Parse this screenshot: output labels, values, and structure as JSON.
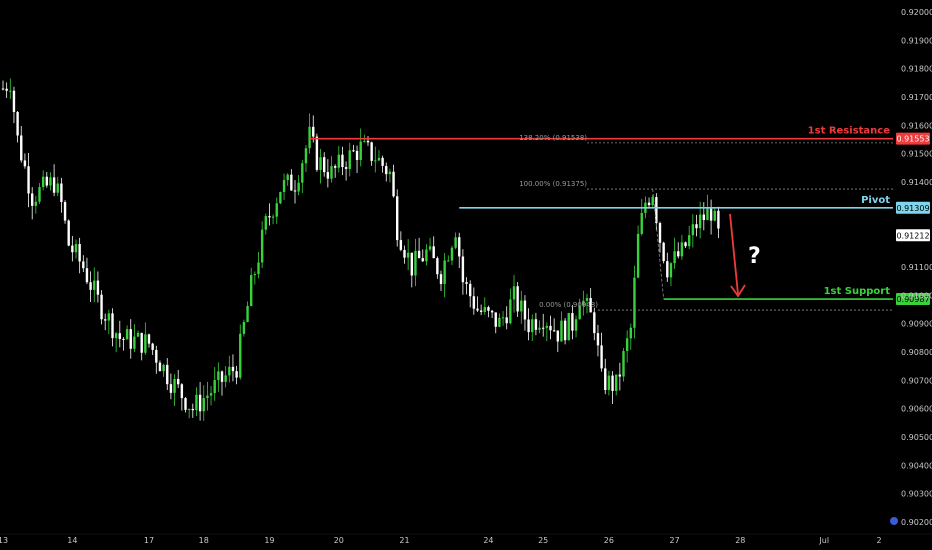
{
  "chart_data": {
    "type": "candlestick",
    "title": "",
    "ylim": [
      0.902,
      0.92
    ],
    "y_ticks": [
      "0.92000",
      "0.91900",
      "0.91800",
      "0.91700",
      "0.91600",
      "0.91500",
      "0.91400",
      "0.91100",
      "0.91000",
      "0.90900",
      "0.90800",
      "0.90700",
      "0.90600",
      "0.90500",
      "0.90400",
      "0.90300",
      "0.90200"
    ],
    "x_ticks": [
      {
        "label": "13",
        "i": 0
      },
      {
        "label": "14",
        "i": 19
      },
      {
        "label": "17",
        "i": 40
      },
      {
        "label": "18",
        "i": 55
      },
      {
        "label": "19",
        "i": 73
      },
      {
        "label": "20",
        "i": 92
      },
      {
        "label": "21",
        "i": 110
      },
      {
        "label": "24",
        "i": 133
      },
      {
        "label": "25",
        "i": 148
      },
      {
        "label": "26",
        "i": 166
      },
      {
        "label": "27",
        "i": 184
      },
      {
        "label": "28",
        "i": 202
      },
      {
        "label": "Jul",
        "i": 225
      },
      {
        "label": "2",
        "i": 240
      }
    ],
    "candle_count": 258,
    "price_path": [
      [
        0,
        0.9173
      ],
      [
        2,
        0.9176
      ],
      [
        4,
        0.9155
      ],
      [
        8,
        0.9135
      ],
      [
        14,
        0.914
      ],
      [
        16,
        0.9132
      ],
      [
        18,
        0.9118
      ],
      [
        22,
        0.911
      ],
      [
        26,
        0.9098
      ],
      [
        32,
        0.9085
      ],
      [
        40,
        0.9083
      ],
      [
        46,
        0.907
      ],
      [
        52,
        0.906
      ],
      [
        60,
        0.907
      ],
      [
        64,
        0.9075
      ],
      [
        68,
        0.9103
      ],
      [
        72,
        0.9125
      ],
      [
        76,
        0.9138
      ],
      [
        80,
        0.914
      ],
      [
        84,
        0.9156
      ],
      [
        86,
        0.9148
      ],
      [
        90,
        0.9143
      ],
      [
        94,
        0.9148
      ],
      [
        98,
        0.9152
      ],
      [
        102,
        0.9149
      ],
      [
        106,
        0.9143
      ],
      [
        108,
        0.9124
      ],
      [
        112,
        0.911
      ],
      [
        116,
        0.9115
      ],
      [
        120,
        0.9108
      ],
      [
        124,
        0.9124
      ],
      [
        126,
        0.9105
      ],
      [
        130,
        0.9095
      ],
      [
        136,
        0.909
      ],
      [
        140,
        0.9099
      ],
      [
        144,
        0.909
      ],
      [
        148,
        0.9093
      ],
      [
        152,
        0.9087
      ],
      [
        156,
        0.909
      ],
      [
        158,
        0.91
      ],
      [
        162,
        0.909
      ],
      [
        164,
        0.907
      ],
      [
        168,
        0.9068
      ],
      [
        170,
        0.9078
      ],
      [
        172,
        0.9088
      ],
      [
        174,
        0.912
      ],
      [
        176,
        0.9133
      ],
      [
        178,
        0.9137
      ],
      [
        180,
        0.912
      ],
      [
        182,
        0.911
      ],
      [
        186,
        0.9115
      ],
      [
        190,
        0.9125
      ],
      [
        194,
        0.913
      ],
      [
        196,
        0.9121
      ]
    ],
    "levels": [
      {
        "name": "1st Resistance",
        "value": 0.91553,
        "badge": "0.91553",
        "color": "#ef3b3b"
      },
      {
        "name": "Pivot",
        "value": 0.91309,
        "badge": "0.91309",
        "color": "#7fd6ec"
      },
      {
        "name": "1st Support",
        "value": 0.90987,
        "badge": "0.90987",
        "color": "#39d23c"
      }
    ],
    "last_price": {
      "value": 0.91212,
      "badge": "0.91212"
    },
    "fib_labels": [
      {
        "text": "138.20% (0.91538)",
        "value": 0.91538
      },
      {
        "text": "100.00% (0.91375)",
        "value": 0.91375
      },
      {
        "text": "0.00% (0.90948)",
        "value": 0.90948
      }
    ],
    "annotation": "?",
    "bull_color": "#39d23c",
    "bear_color": "#ffffff",
    "grid": false
  }
}
